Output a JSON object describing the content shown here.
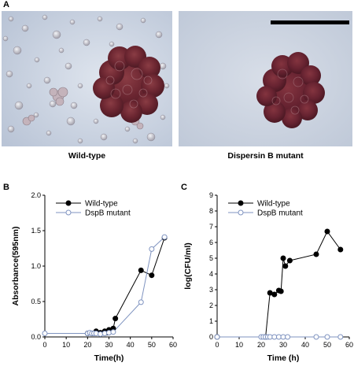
{
  "figure": {
    "panel_a": {
      "letter": "A",
      "left_caption": "Wild-type",
      "right_caption": "Dispersin B mutant"
    },
    "panel_b": {
      "letter": "B"
    },
    "panel_c": {
      "letter": "C"
    }
  },
  "colors": {
    "wildtype": "#000000",
    "mutant": "#7f93c0",
    "photo_bg": "#c7d1e0",
    "colony": "#6e2830"
  },
  "chart_data": [
    {
      "id": "B",
      "type": "line",
      "xlabel": "Time(h)",
      "ylabel": "Absorbance(595nm)",
      "xlim": [
        0,
        60
      ],
      "ylim": [
        0,
        2.0
      ],
      "xticks": [
        "0",
        "10",
        "20",
        "30",
        "40",
        "50",
        "60"
      ],
      "yticks": [
        "0.0",
        "0.5",
        "1.0",
        "1.5",
        "2.0"
      ],
      "legend": "top-left",
      "series": [
        {
          "name": "Wild-type",
          "marker": "filled-circle",
          "x": [
            20,
            22,
            24,
            26,
            28,
            29,
            30,
            32,
            33,
            45,
            50,
            56
          ],
          "y": [
            0.05,
            0.05,
            0.08,
            0.06,
            0.08,
            0.06,
            0.1,
            0.12,
            0.26,
            0.94,
            0.87,
            1.4
          ]
        },
        {
          "name": "DspB mutant",
          "marker": "open-circle",
          "x": [
            0,
            20,
            21,
            22,
            23,
            24,
            26,
            28,
            30,
            32,
            45,
            50,
            56
          ],
          "y": [
            0.05,
            0.05,
            0.06,
            0.05,
            0.05,
            0.05,
            0.04,
            0.05,
            0.06,
            0.07,
            0.49,
            1.24,
            1.41
          ]
        }
      ]
    },
    {
      "id": "C",
      "type": "line",
      "xlabel": "Time (h)",
      "ylabel": "log(CFU/ml)",
      "xlim": [
        0,
        60
      ],
      "ylim": [
        0,
        9
      ],
      "xticks": [
        "0",
        "10",
        "20",
        "30",
        "40",
        "50",
        "60"
      ],
      "yticks": [
        "0",
        "1",
        "2",
        "3",
        "4",
        "5",
        "6",
        "7",
        "8",
        "9"
      ],
      "legend": "top-left",
      "series": [
        {
          "name": "Wild-type",
          "marker": "filled-circle",
          "x": [
            0,
            22,
            24,
            26,
            28,
            29,
            30,
            31,
            33,
            45,
            50,
            56
          ],
          "y": [
            0,
            0,
            2.8,
            2.7,
            2.95,
            2.9,
            5.0,
            4.5,
            4.85,
            5.25,
            6.7,
            5.55
          ]
        },
        {
          "name": "DspB mutant",
          "marker": "open-circle",
          "x": [
            0,
            20,
            21,
            22,
            23,
            24,
            26,
            28,
            30,
            32,
            45,
            50,
            56
          ],
          "y": [
            0,
            0,
            0,
            0,
            0,
            0,
            0,
            0,
            0,
            0,
            0,
            0,
            0
          ]
        }
      ]
    }
  ]
}
